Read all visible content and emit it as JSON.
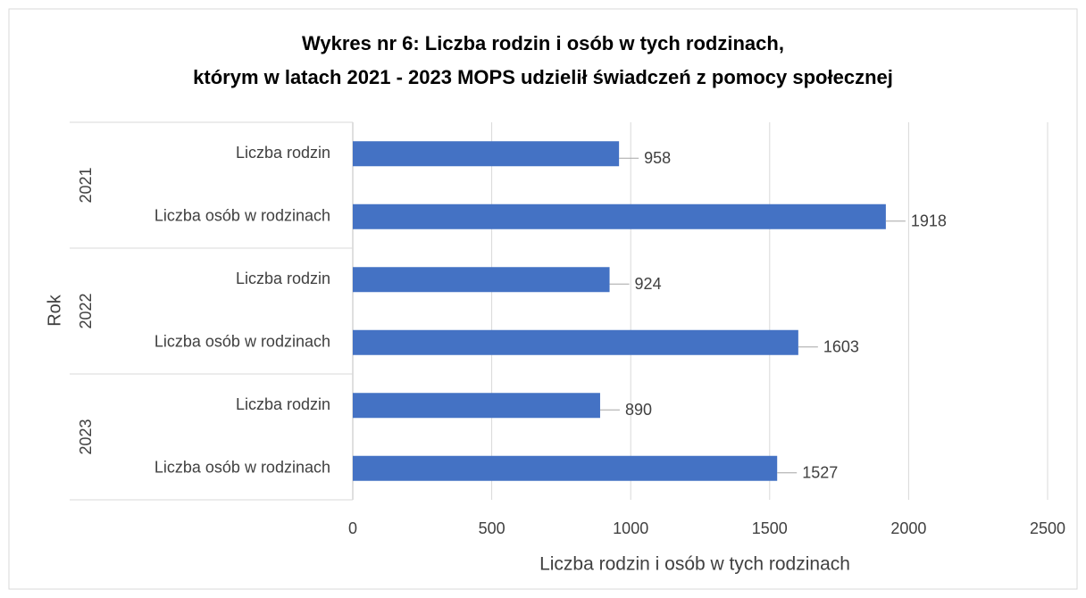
{
  "chart_data": {
    "type": "bar",
    "orientation": "horizontal",
    "title": [
      "Wykres nr 6: Liczba rodzin i osób w tych rodzinach,",
      "którym w latach 2021 - 2023  MOPS udzielił świadczeń z pomocy społecznej"
    ],
    "groups": [
      "2021",
      "2022",
      "2023"
    ],
    "categories": [
      "Liczba rodzin",
      "Liczba osób w rodzinach",
      "Liczba rodzin",
      "Liczba osób w rodzinach",
      "Liczba rodzin",
      "Liczba osób w rodzinach"
    ],
    "values": [
      958,
      1918,
      924,
      1603,
      890,
      1527
    ],
    "color": "#4472c4",
    "xlabel": "Liczba rodzin i osób w tych rodzinach",
    "ylabel": "Rok",
    "xlim": [
      0,
      2500
    ],
    "xticks": [
      0,
      500,
      1000,
      1500,
      2000,
      2500
    ],
    "grid": true
  }
}
